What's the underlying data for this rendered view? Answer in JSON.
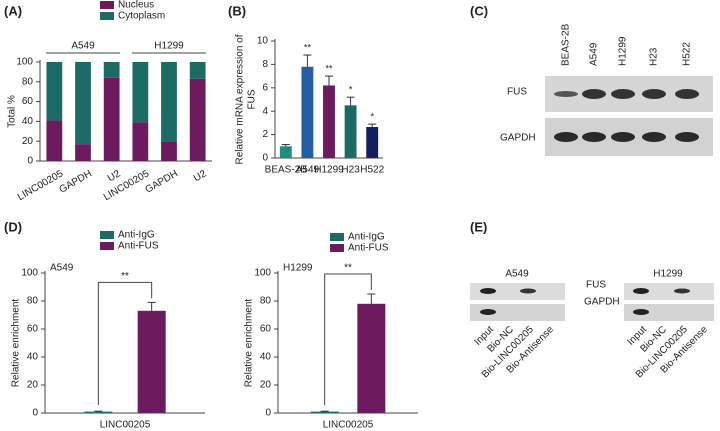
{
  "panel_labels": [
    "(A)",
    "(B)",
    "(C)",
    "(D)",
    "(E)"
  ],
  "chart_data": [
    {
      "type": "bar",
      "stacked": true,
      "ylabel": "Total %",
      "categories": [
        "LINC00205",
        "GAPDH",
        "U2",
        "LINC00205",
        "GAPDH",
        "U2"
      ],
      "group_labels": [
        "A549",
        "H1299"
      ],
      "series": [
        {
          "name": "Nucleus",
          "color": "#6d1a5e",
          "values": [
            41,
            17,
            84,
            39,
            20,
            83
          ]
        },
        {
          "name": "Cytoplasm",
          "color": "#1c6b64",
          "values": [
            59,
            83,
            16,
            61,
            80,
            17
          ]
        }
      ],
      "ylim": [
        0,
        100
      ],
      "yticks": [
        0,
        20,
        40,
        60,
        80,
        100
      ]
    },
    {
      "type": "bar",
      "ylabel": [
        "Relative mRNA expression of",
        "FUS"
      ],
      "categories": [
        "BEAS-2B",
        "A549",
        "H1299",
        "H23",
        "H522"
      ],
      "values": [
        1.0,
        7.8,
        6.2,
        4.5,
        2.65
      ],
      "errors": [
        0.15,
        1.0,
        0.8,
        0.7,
        0.25
      ],
      "annotations": [
        null,
        "**",
        "**",
        "*",
        "*"
      ],
      "colors": [
        "#1a8f80",
        "#245ea3",
        "#6d1a5e",
        "#1c6b64",
        "#141f63"
      ],
      "ylim": [
        0,
        10
      ],
      "yticks": [
        0,
        2,
        4,
        6,
        8,
        10
      ]
    },
    {
      "type": "bar",
      "subtitle": "A549",
      "ylabel": "Relative enrichment",
      "annotation": "**",
      "categories": [
        "LINC00205"
      ],
      "series": [
        {
          "name": "Anti-IgG",
          "color": "#1c6b64",
          "values": [
            1
          ],
          "errors": [
            0.3
          ]
        },
        {
          "name": "Anti-FUS",
          "color": "#6d1a5e",
          "values": [
            73
          ],
          "errors": [
            6
          ]
        }
      ],
      "ylim": [
        0,
        100
      ],
      "yticks": [
        0,
        20,
        40,
        60,
        80,
        100
      ]
    },
    {
      "type": "bar",
      "subtitle": "H1299",
      "ylabel": "Relative enrichment",
      "annotation": "**",
      "categories": [
        "LINC00205"
      ],
      "series": [
        {
          "name": "Anti-IgG",
          "color": "#1c6b64",
          "values": [
            1
          ],
          "errors": [
            0.3
          ]
        },
        {
          "name": "Anti-FUS",
          "color": "#6d1a5e",
          "values": [
            78
          ],
          "errors": [
            7
          ]
        }
      ],
      "ylim": [
        0,
        100
      ],
      "yticks": [
        0,
        20,
        40,
        60,
        80,
        100
      ]
    }
  ],
  "blots": {
    "c": {
      "lanes": [
        "BEAS-2B",
        "A549",
        "H1299",
        "H23",
        "H522"
      ],
      "rows": [
        "FUS",
        "GAPDH"
      ]
    },
    "e": {
      "rows": [
        "FUS",
        "GAPDH"
      ],
      "panels": [
        {
          "title": "A549",
          "lanes": [
            "Input",
            "Bio-NC",
            "Bio-LINC00205",
            "Bio-Antisense"
          ]
        },
        {
          "title": "H1299",
          "lanes": [
            "Input",
            "Bio-NC",
            "Bio-LINC00205",
            "Bio-Antisense"
          ]
        }
      ]
    }
  }
}
